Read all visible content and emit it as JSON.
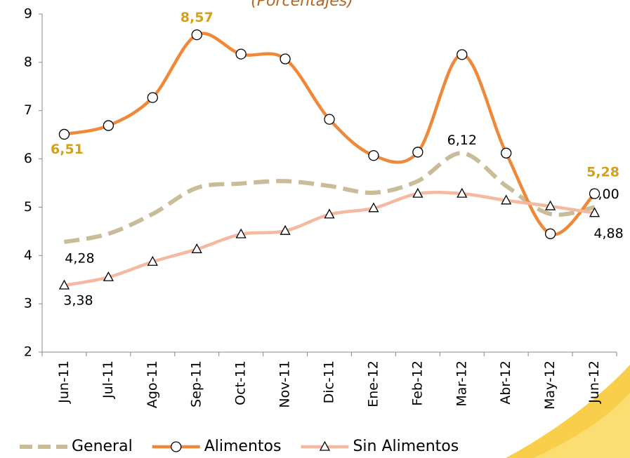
{
  "chart_data": {
    "type": "line",
    "subtitle": "(Porcentajes)",
    "categories": [
      "Jun-11",
      "Jul-11",
      "Ago-11",
      "Sep-11",
      "Oct-11",
      "Nov-11",
      "Dic-11",
      "Ene-12",
      "Feb-12",
      "Mar-12",
      "Abr-12",
      "May-12",
      "Jun-12"
    ],
    "ylim": [
      2,
      9
    ],
    "yticks": [
      2,
      3,
      4,
      5,
      6,
      7,
      8,
      9
    ],
    "legend": "bottom",
    "series": [
      {
        "name": "General",
        "color": "#c9bc98",
        "dash": true,
        "marker": "none",
        "label_color": "#000000",
        "values": [
          4.28,
          4.45,
          4.86,
          5.4,
          5.49,
          5.54,
          5.44,
          5.3,
          5.54,
          6.12,
          5.44,
          4.86,
          5.0
        ],
        "value_labels": [
          "4,28",
          null,
          null,
          null,
          null,
          null,
          null,
          null,
          null,
          "6,12",
          null,
          null,
          "5,00"
        ]
      },
      {
        "name": "Alimentos",
        "color": "#f0883a",
        "dash": false,
        "marker": "circle",
        "label_color": "#d4a017",
        "values": [
          6.51,
          6.69,
          7.27,
          8.57,
          8.17,
          8.07,
          6.82,
          6.07,
          6.14,
          8.16,
          6.12,
          4.45,
          5.28
        ],
        "value_labels": [
          "6,51",
          null,
          null,
          "8,57",
          null,
          null,
          null,
          null,
          null,
          null,
          null,
          null,
          "5,28"
        ]
      },
      {
        "name": "Sin Alimentos",
        "color": "#f5b8a0",
        "dash": false,
        "marker": "triangle",
        "label_color": "#000000",
        "values": [
          3.38,
          3.55,
          3.87,
          4.13,
          4.44,
          4.51,
          4.85,
          4.98,
          5.28,
          5.28,
          5.14,
          5.02,
          4.88
        ],
        "value_labels": [
          "3,38",
          null,
          null,
          null,
          null,
          null,
          null,
          null,
          null,
          null,
          null,
          null,
          "4,88"
        ]
      }
    ]
  }
}
